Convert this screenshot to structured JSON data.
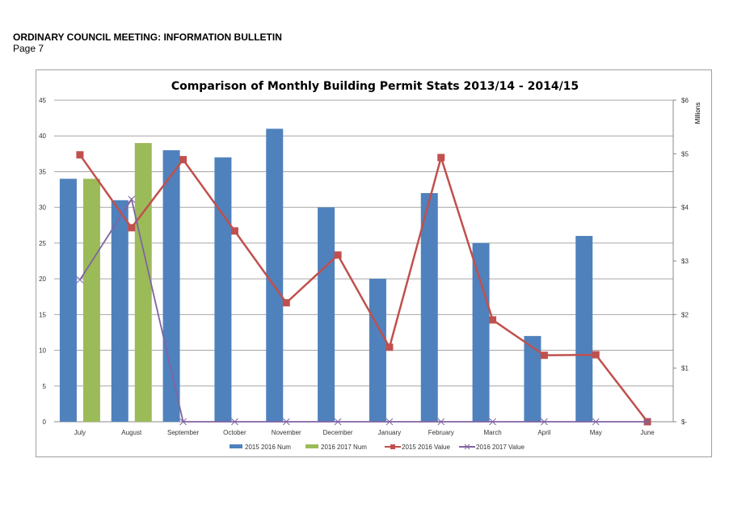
{
  "header": {
    "title": "ORDINARY COUNCIL MEETING: INFORMATION BULLETIN",
    "page": "Page 7"
  },
  "chart_data": {
    "type": "bar",
    "title": "Comparison of Monthly Building Permit Stats 2013/14 - 2014/15",
    "categories": [
      "July",
      "August",
      "September",
      "October",
      "November",
      "December",
      "January",
      "February",
      "March",
      "April",
      "May",
      "June"
    ],
    "ylim": [
      0,
      45
    ],
    "y_ticks": [
      "0",
      "5",
      "10",
      "15",
      "20",
      "25",
      "30",
      "35",
      "40",
      "45"
    ],
    "y2lim": [
      0,
      6
    ],
    "y2_ticks": [
      "$-",
      "$1",
      "$2",
      "$3",
      "$4",
      "$5",
      "$6"
    ],
    "y2label": "Millions",
    "grid": true,
    "legend_position": "bottom",
    "series": [
      {
        "name": "2015 2016 Num",
        "type": "bar",
        "axis": "left",
        "color": "#4f81bd",
        "values": [
          34,
          31,
          38,
          37,
          41,
          30,
          20,
          32,
          25,
          12,
          26,
          0
        ]
      },
      {
        "name": "2016 2017 Num",
        "type": "bar",
        "axis": "left",
        "color": "#9bbb59",
        "values": [
          34,
          39,
          0,
          0,
          0,
          0,
          0,
          0,
          0,
          0,
          0,
          0
        ]
      },
      {
        "name": "2015 2016 Value",
        "type": "line",
        "axis": "right",
        "marker": "square",
        "color": "#c0504d",
        "values": [
          4.98,
          3.62,
          4.89,
          3.56,
          2.22,
          3.11,
          1.39,
          4.93,
          1.9,
          1.24,
          1.25,
          0
        ]
      },
      {
        "name": "2016 2017 Value",
        "type": "line",
        "axis": "right",
        "marker": "x",
        "color": "#8064a2",
        "values": [
          2.65,
          4.15,
          0,
          0,
          0,
          0,
          0,
          0,
          0,
          0,
          0,
          0
        ]
      }
    ]
  }
}
